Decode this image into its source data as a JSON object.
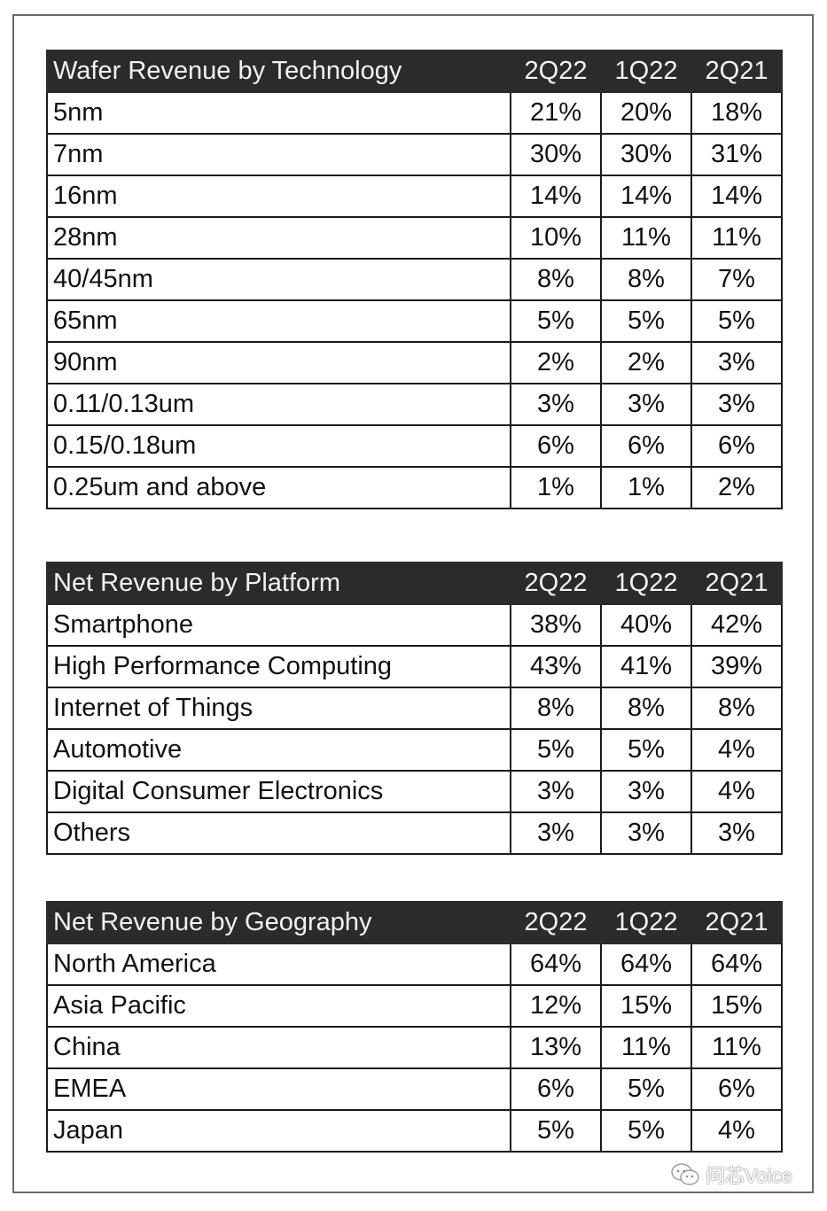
{
  "tables": [
    {
      "title": "Wafer Revenue by Technology",
      "columns": [
        "2Q22",
        "1Q22",
        "2Q21"
      ],
      "rows": [
        {
          "label": "5nm",
          "values": [
            "21%",
            "20%",
            "18%"
          ]
        },
        {
          "label": "7nm",
          "values": [
            "30%",
            "30%",
            "31%"
          ]
        },
        {
          "label": "16nm",
          "values": [
            "14%",
            "14%",
            "14%"
          ]
        },
        {
          "label": "28nm",
          "values": [
            "10%",
            "11%",
            "11%"
          ]
        },
        {
          "label": "40/45nm",
          "values": [
            "8%",
            "8%",
            "7%"
          ]
        },
        {
          "label": "65nm",
          "values": [
            "5%",
            "5%",
            "5%"
          ]
        },
        {
          "label": "90nm",
          "values": [
            "2%",
            "2%",
            "3%"
          ]
        },
        {
          "label": "0.11/0.13um",
          "values": [
            "3%",
            "3%",
            "3%"
          ]
        },
        {
          "label": "0.15/0.18um",
          "values": [
            "6%",
            "6%",
            "6%"
          ]
        },
        {
          "label": "0.25um and above",
          "values": [
            "1%",
            "1%",
            "2%"
          ]
        }
      ]
    },
    {
      "title": "Net Revenue by Platform",
      "columns": [
        "2Q22",
        "1Q22",
        "2Q21"
      ],
      "rows": [
        {
          "label": "Smartphone",
          "values": [
            "38%",
            "40%",
            "42%"
          ]
        },
        {
          "label": "High Performance Computing",
          "values": [
            "43%",
            "41%",
            "39%"
          ]
        },
        {
          "label": "Internet of Things",
          "values": [
            "8%",
            "8%",
            "8%"
          ]
        },
        {
          "label": "Automotive",
          "values": [
            "5%",
            "5%",
            "4%"
          ]
        },
        {
          "label": "Digital Consumer Electronics",
          "values": [
            "3%",
            "3%",
            "4%"
          ]
        },
        {
          "label": "Others",
          "values": [
            "3%",
            "3%",
            "3%"
          ]
        }
      ]
    },
    {
      "title": "Net Revenue by Geography",
      "columns": [
        "2Q22",
        "1Q22",
        "2Q21"
      ],
      "rows": [
        {
          "label": "North America",
          "values": [
            "64%",
            "64%",
            "64%"
          ]
        },
        {
          "label": "Asia Pacific",
          "values": [
            "12%",
            "15%",
            "15%"
          ]
        },
        {
          "label": "China",
          "values": [
            "13%",
            "11%",
            "11%"
          ]
        },
        {
          "label": "EMEA",
          "values": [
            "6%",
            "5%",
            "6%"
          ]
        },
        {
          "label": "Japan",
          "values": [
            "5%",
            "5%",
            "4%"
          ]
        }
      ]
    }
  ],
  "watermark": {
    "icon": "wechat-icon",
    "text": "问芯Voice"
  },
  "colors": {
    "header_bg": "#2b2b2b",
    "header_text": "#f2f2f2",
    "border": "#1a1a1a"
  }
}
